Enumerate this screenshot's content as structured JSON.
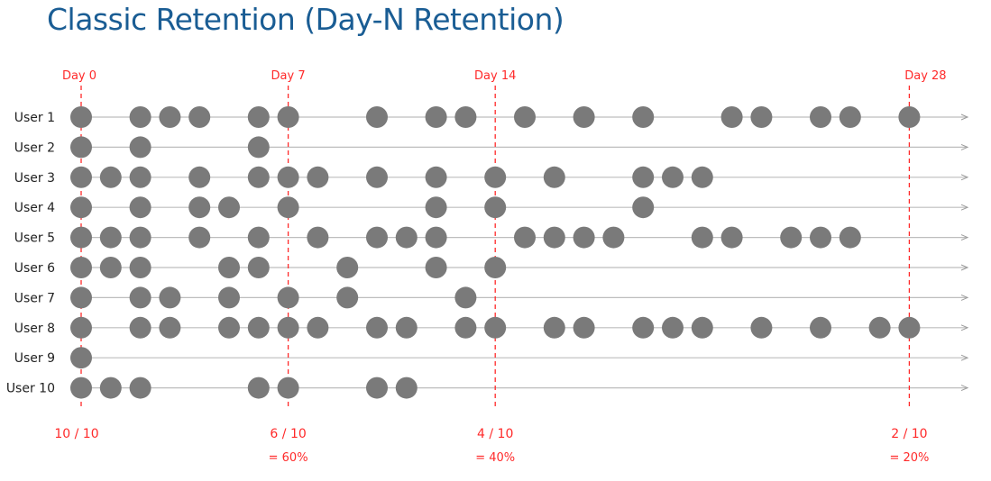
{
  "title": "Classic Retention (Day-N Retention)",
  "colors": {
    "title": "#1a5d94",
    "marker": "#ff2a2a",
    "dot": "#7a7a7a",
    "track": "#bdbdbd"
  },
  "marker_count": 4,
  "markers": [
    {
      "label": "Day 0",
      "ratio": "10 / 10",
      "percent": ""
    },
    {
      "label": "Day 7",
      "ratio": "6 / 10",
      "percent": "= 60%"
    },
    {
      "label": "Day 14",
      "ratio": "4 / 10",
      "percent": "= 40%"
    },
    {
      "label": "Day 28",
      "ratio": "2 / 10",
      "percent": "= 20%"
    }
  ],
  "users": [
    {
      "label": "User 1",
      "active": [
        0,
        2,
        3,
        4,
        6,
        7,
        10,
        12,
        13,
        15,
        17,
        19,
        22,
        23,
        25,
        26,
        28
      ]
    },
    {
      "label": "User 2",
      "active": [
        0,
        2,
        6
      ]
    },
    {
      "label": "User 3",
      "active": [
        0,
        1,
        2,
        4,
        6,
        7,
        8,
        10,
        12,
        14,
        16,
        19,
        20,
        21
      ]
    },
    {
      "label": "User 4",
      "active": [
        0,
        2,
        4,
        5,
        7,
        12,
        14,
        19
      ]
    },
    {
      "label": "User 5",
      "active": [
        0,
        1,
        2,
        4,
        6,
        8,
        10,
        11,
        12,
        15,
        16,
        17,
        18,
        21,
        22,
        24,
        25,
        26
      ]
    },
    {
      "label": "User 6",
      "active": [
        0,
        1,
        2,
        5,
        6,
        9,
        12,
        14
      ]
    },
    {
      "label": "User 7",
      "active": [
        0,
        2,
        3,
        5,
        7,
        9,
        13
      ]
    },
    {
      "label": "User 8",
      "active": [
        0,
        2,
        3,
        5,
        6,
        7,
        8,
        10,
        11,
        13,
        14,
        16,
        17,
        19,
        20,
        21,
        23,
        25,
        27,
        28
      ]
    },
    {
      "label": "User 9",
      "active": [
        0
      ]
    },
    {
      "label": "User 10",
      "active": [
        0,
        1,
        2,
        6,
        7,
        10,
        11
      ]
    }
  ]
}
